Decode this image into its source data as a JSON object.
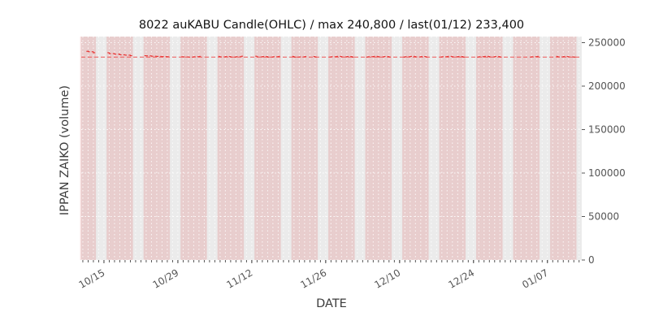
{
  "figure": {
    "title": "8022 auKABU Candle(OHLC) / max 240,800 / last(01/12) 233,400",
    "xlabel": "DATE",
    "ylabel": "IPPAN ZAIKO (volume)"
  },
  "chart_data": {
    "type": "candlestick",
    "title": "8022 auKABU Candle(OHLC) / max 240,800 / last(01/12) 233,400",
    "xlabel": "DATE",
    "ylabel": "IPPAN ZAIKO (volume)",
    "ylim": [
      0,
      257000
    ],
    "yticks": [
      0,
      50000,
      100000,
      150000,
      200000,
      250000
    ],
    "ytick_labels": [
      "0",
      "50000",
      "100000",
      "150000",
      "200000",
      "250000"
    ],
    "xtick_labels": [
      "10/15",
      "10/29",
      "11/12",
      "11/26",
      "12/10",
      "12/24",
      "01/07"
    ],
    "grid": true,
    "legend": "none",
    "y_axis_side": "right",
    "max_value": 240800,
    "last_date": "01/12",
    "last_value": 233400,
    "last_price_line": 233400,
    "colors": {
      "candle": "#e8312f",
      "last_line": "#f05050",
      "plot_bg": "#ebebeb",
      "weekday_band": "rgba(226,128,128,0.28)",
      "grid_dot": "#ffffff",
      "tick_text": "#555555"
    },
    "candles": [
      [
        "10/12",
        240000,
        240800,
        239200,
        239500
      ],
      [
        "10/13",
        239500,
        239900,
        237800,
        238400
      ],
      [
        "10/16",
        238400,
        238800,
        236900,
        237400
      ],
      [
        "10/17",
        237400,
        237800,
        236300,
        236800
      ],
      [
        "10/18",
        236800,
        237200,
        235500,
        236000
      ],
      [
        "10/19",
        236000,
        236400,
        235100,
        235600
      ],
      [
        "10/20",
        235600,
        236000,
        234500,
        235000
      ],
      [
        "10/23",
        235000,
        235400,
        234300,
        234800
      ],
      [
        "10/24",
        234800,
        235200,
        233900,
        234400
      ],
      [
        "10/25",
        234400,
        234800,
        233700,
        234200
      ],
      [
        "10/26",
        234200,
        234600,
        233500,
        234000
      ],
      [
        "10/27",
        234000,
        234400,
        233300,
        233800
      ],
      [
        "10/30",
        233800,
        234200,
        233100,
        233600
      ],
      [
        "10/31",
        233600,
        234000,
        232900,
        233400
      ],
      [
        "11/01",
        233400,
        234200,
        233000,
        233800
      ],
      [
        "11/02",
        233800,
        234600,
        233300,
        234200
      ],
      [
        "11/06",
        234200,
        234600,
        233100,
        233600
      ],
      [
        "11/07",
        233600,
        234400,
        233200,
        234000
      ],
      [
        "11/08",
        234000,
        234400,
        232900,
        233400
      ],
      [
        "11/09",
        233400,
        234200,
        233000,
        233800
      ],
      [
        "11/10",
        233800,
        234800,
        233400,
        234400
      ],
      [
        "11/13",
        234400,
        234800,
        233100,
        233600
      ],
      [
        "11/14",
        233600,
        234400,
        233200,
        234000
      ],
      [
        "11/15",
        234000,
        234400,
        232900,
        233400
      ],
      [
        "11/16",
        233400,
        234200,
        233000,
        233800
      ],
      [
        "11/17",
        233800,
        234600,
        233300,
        234200
      ],
      [
        "11/20",
        234200,
        234600,
        232900,
        233400
      ],
      [
        "11/21",
        233400,
        234000,
        233000,
        233600
      ],
      [
        "11/22",
        233600,
        234400,
        233200,
        234000
      ],
      [
        "11/24",
        234000,
        234400,
        232900,
        233400
      ],
      [
        "11/27",
        233400,
        234200,
        233000,
        233800
      ],
      [
        "11/28",
        233800,
        234600,
        233300,
        234200
      ],
      [
        "11/29",
        234200,
        234600,
        233100,
        233600
      ],
      [
        "11/30",
        233600,
        234400,
        233200,
        234000
      ],
      [
        "12/01",
        234000,
        234400,
        232900,
        233400
      ],
      [
        "12/04",
        233400,
        234200,
        233000,
        233800
      ],
      [
        "12/05",
        233800,
        234600,
        233300,
        234200
      ],
      [
        "12/06",
        234200,
        234600,
        233100,
        233600
      ],
      [
        "12/07",
        233600,
        234400,
        233200,
        234000
      ],
      [
        "12/08",
        234000,
        234400,
        232900,
        233400
      ],
      [
        "12/11",
        233400,
        234200,
        233000,
        233800
      ],
      [
        "12/12",
        233800,
        234600,
        233300,
        234200
      ],
      [
        "12/13",
        234200,
        234600,
        233100,
        233600
      ],
      [
        "12/14",
        233600,
        234400,
        233200,
        234000
      ],
      [
        "12/15",
        234000,
        234400,
        232900,
        233400
      ],
      [
        "12/18",
        233400,
        234200,
        233000,
        233800
      ],
      [
        "12/19",
        233800,
        234600,
        233300,
        234200
      ],
      [
        "12/20",
        234200,
        234600,
        233100,
        233600
      ],
      [
        "12/21",
        233600,
        234400,
        233200,
        234000
      ],
      [
        "12/22",
        234000,
        234400,
        232900,
        233400
      ],
      [
        "12/25",
        233400,
        234200,
        233000,
        233800
      ],
      [
        "12/26",
        233800,
        234600,
        233300,
        234200
      ],
      [
        "12/27",
        234200,
        234600,
        233100,
        233600
      ],
      [
        "12/28",
        233600,
        234400,
        233200,
        234000
      ],
      [
        "12/29",
        234000,
        234400,
        232900,
        233400
      ],
      [
        "01/04",
        233400,
        234200,
        233000,
        233800
      ],
      [
        "01/05",
        233800,
        234600,
        233300,
        234200
      ],
      [
        "01/09",
        234200,
        234600,
        233100,
        233600
      ],
      [
        "01/10",
        233600,
        234400,
        233200,
        234000
      ],
      [
        "01/11",
        234000,
        234200,
        233100,
        233600
      ],
      [
        "01/12",
        233600,
        233900,
        233000,
        233400
      ]
    ]
  }
}
